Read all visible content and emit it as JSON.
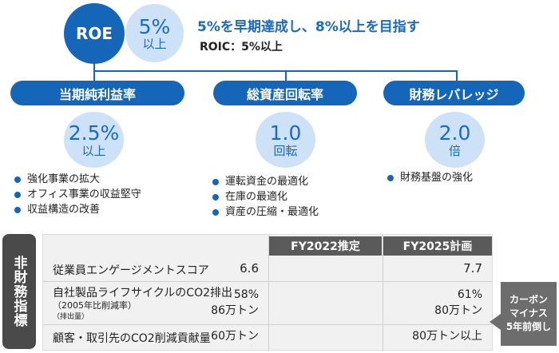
{
  "roe": {
    "label": "ROE",
    "target_value": "5%",
    "target_suffix": "以上",
    "headline": "5%を早期達成し、8%以上を目指す",
    "roic": "ROIC：5%以上"
  },
  "pillars": [
    {
      "label": "当期純利益率",
      "value": "2.5%",
      "unit": "以上",
      "bullets": [
        "強化事業の拡大",
        "オフィス事業の収益堅守",
        "収益構造の改善"
      ]
    },
    {
      "label": "総資産回転率",
      "value": "1.0",
      "unit": "回転",
      "bullets": [
        "運転資金の最適化",
        "在庫の最適化",
        "資産の圧縮・最適化"
      ]
    },
    {
      "label": "財務レバレッジ",
      "value": "2.0",
      "unit": "倍",
      "bullets": [
        "財務基盤の強化"
      ]
    }
  ],
  "non_financial": {
    "side_label": "非財務指標",
    "headers": [
      "FY2022推定",
      "FY2025計画"
    ],
    "rows": [
      {
        "label": "従業員エンゲージメントスコア",
        "fy2022": "6.6",
        "fy2025": "7.7"
      },
      {
        "label": "自社製品ライフサイクルのCO2排出",
        "sub1": "（2005年比削減率）",
        "sub2": "（排出量）",
        "fy2022": "58%",
        "fy2022b": "86万トン",
        "fy2025": "61%",
        "fy2025b": "80万トン"
      },
      {
        "label": "顧客・取引先のCO2削減貢献量",
        "fy2022": "60万トン",
        "fy2025": "80万トン以上"
      }
    ],
    "callout": [
      "カーボン",
      "マイナス",
      "5年前倒し"
    ]
  },
  "colors": {
    "primary": "#1565b8",
    "light": "#cde2f7",
    "dark": "#4a4a4a"
  }
}
